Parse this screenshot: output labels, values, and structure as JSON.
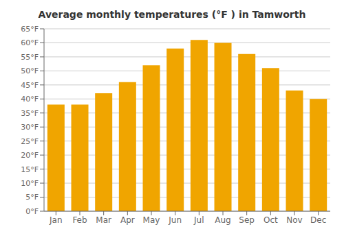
{
  "chart_data": {
    "type": "bar",
    "title": "Average monthly temperatures (°F ) in Tamworth",
    "categories": [
      "Jan",
      "Feb",
      "Mar",
      "Apr",
      "May",
      "Jun",
      "Jul",
      "Aug",
      "Sep",
      "Oct",
      "Nov",
      "Dec"
    ],
    "values": [
      38,
      38,
      42,
      46,
      52,
      58,
      61,
      60,
      56,
      51,
      43,
      40
    ],
    "color": "#F0A500",
    "ylim": [
      0,
      65
    ],
    "yticks": [
      {
        "value": 0,
        "label": "0°F"
      },
      {
        "value": 5,
        "label": "5°F"
      },
      {
        "value": 10,
        "label": "10°F"
      },
      {
        "value": 15,
        "label": "15°F"
      },
      {
        "value": 20,
        "label": "20°F"
      },
      {
        "value": 25,
        "label": "25°F"
      },
      {
        "value": 30,
        "label": "30°F"
      },
      {
        "value": 35,
        "label": "35°F"
      },
      {
        "value": 40,
        "label": "40°F"
      },
      {
        "value": 45,
        "label": "45°F"
      },
      {
        "value": 50,
        "label": "50°F"
      },
      {
        "value": 55,
        "label": "55°F"
      },
      {
        "value": 60,
        "label": "60°F"
      },
      {
        "value": 65,
        "label": "65°F"
      }
    ],
    "grid": true
  }
}
